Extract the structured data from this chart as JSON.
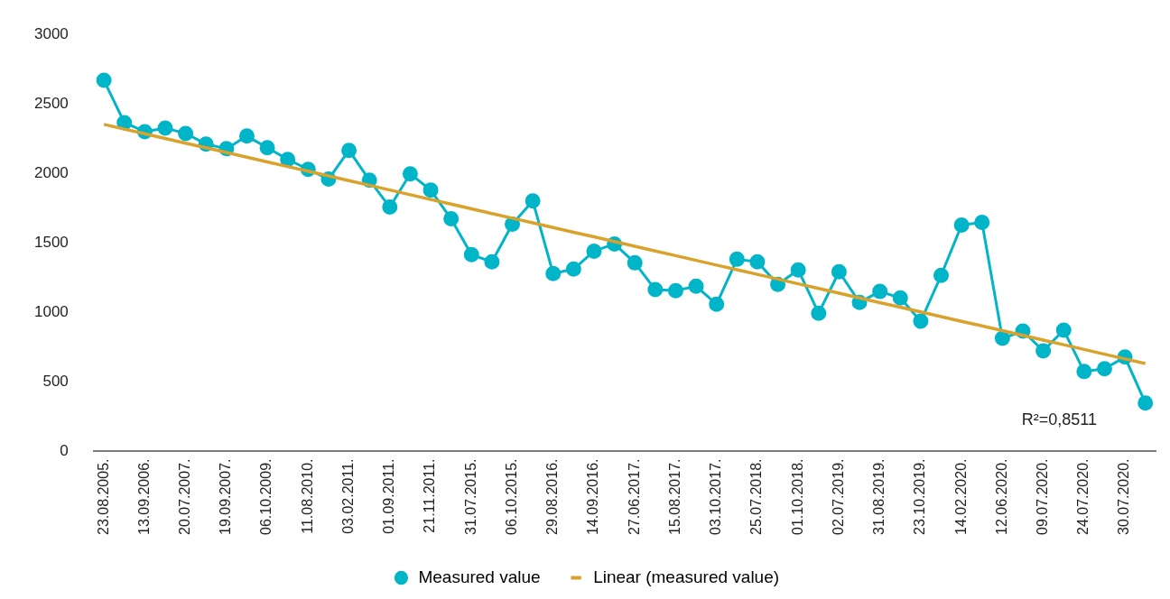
{
  "chart_data": {
    "type": "line",
    "categories": [
      "23.08.2005.",
      null,
      "13.09.2006.",
      null,
      "20.07.2007.",
      null,
      "19.09.2007.",
      null,
      "06.10.2009.",
      null,
      "11.08.2010.",
      null,
      "03.02.2011.",
      null,
      "01.09.2011.",
      null,
      "21.11.2011.",
      null,
      "31.07.2015.",
      null,
      "06.10.2015.",
      null,
      "29.08.2016.",
      null,
      "14.09.2016.",
      null,
      "27.06.2017.",
      null,
      "15.08.2017.",
      null,
      "03.10.2017.",
      null,
      "25.07.2018.",
      null,
      "01.10.2018.",
      null,
      "02.07.2019.",
      null,
      "31.08.2019.",
      null,
      "23.10.2019.",
      null,
      "14.02.2020.",
      null,
      "12.06.2020.",
      null,
      "09.07.2020.",
      null,
      "24.07.2020.",
      null,
      "30.07.2020.",
      null
    ],
    "series": [
      {
        "name": "Measured value",
        "color": "#00b5c8",
        "marker": "circle",
        "values": [
          2670,
          2366,
          2301,
          2327,
          2288,
          2211,
          2178,
          2269,
          2185,
          2101,
          2030,
          1959,
          2166,
          1952,
          1758,
          1997,
          1881,
          1674,
          1416,
          1364,
          1635,
          1803,
          1280,
          1312,
          1441,
          1493,
          1357,
          1164,
          1157,
          1189,
          1060,
          1383,
          1364,
          1202,
          1306,
          995,
          1293,
          1073,
          1151,
          1105,
          937,
          1267,
          1629,
          1648,
          814,
          866,
          724,
          873,
          575,
          595,
          679,
          349
        ]
      },
      {
        "name": "Linear (measured value)",
        "color": "#d9a22c",
        "marker": "none",
        "type": "line",
        "values": [
          2353,
          2319,
          2286,
          2252,
          2218,
          2185,
          2151,
          2117,
          2083,
          2050,
          2016,
          1982,
          1948,
          1915,
          1881,
          1847,
          1813,
          1780,
          1746,
          1712,
          1678,
          1645,
          1611,
          1577,
          1544,
          1510,
          1476,
          1442,
          1409,
          1375,
          1341,
          1307,
          1274,
          1240,
          1206,
          1173,
          1139,
          1105,
          1071,
          1038,
          1004,
          970,
          936,
          903,
          869,
          835,
          801,
          768,
          734,
          700,
          666,
          633
        ]
      }
    ],
    "ylim": [
      0,
      3000
    ],
    "yticks": [
      0,
      500,
      1000,
      1500,
      2000,
      2500,
      3000
    ],
    "grid": false,
    "legend": "bottom",
    "annotations": [
      "R²=0,8511"
    ]
  }
}
